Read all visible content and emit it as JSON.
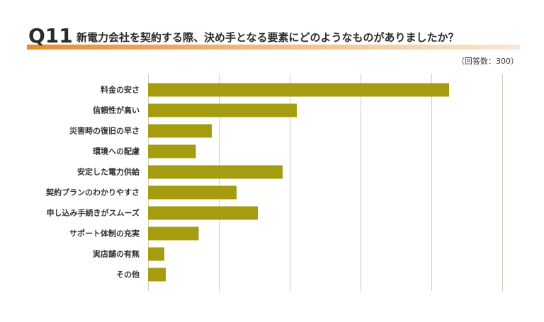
{
  "header": {
    "question_number": "Q11",
    "question_text": "新電力会社を契約する際、決め手となる要素にどのようなものがありましたか？",
    "respondents": "（回答数：300）"
  },
  "colors": {
    "bar": "#a59c0f",
    "grid": "#cfcbc3",
    "accent": "#e98a2e"
  },
  "chart_data": {
    "type": "bar",
    "orientation": "horizontal",
    "categories": [
      "料金の安さ",
      "信頼性が高い",
      "災害時の復旧の早さ",
      "環境への配慮",
      "安定した電力供給",
      "契約プランのわかりやすさ",
      "申し込み手続きがスムーズ",
      "サポート体制の充実",
      "実店舗の有無",
      "その他"
    ],
    "values": [
      85,
      42,
      18,
      13.5,
      38,
      25,
      31,
      14.3,
      4.6,
      5
    ],
    "xlim": [
      0,
      100
    ],
    "x_grid_step": 20,
    "grid": true,
    "tick_labels_shown": false,
    "legend": "none"
  }
}
